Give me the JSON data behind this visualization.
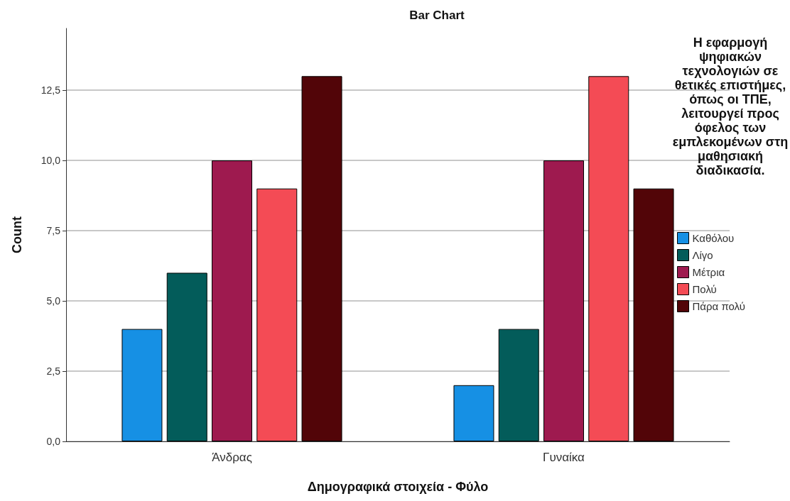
{
  "chart_data": {
    "type": "bar",
    "title": "Bar Chart",
    "xlabel": "Δημογραφικά στοιχεία - Φύλο",
    "ylabel": "Count",
    "legend_title": "Η εφαρμογή ψηφιακών τεχνολογιών σε θετικές επιστήμες, όπως οι ΤΠΕ, λειτουργεί προς όφελος των εμπλεκομένων στη μαθησιακή διαδικασία.",
    "categories": [
      "Άνδρας",
      "Γυναίκα"
    ],
    "series": [
      {
        "name": "Καθόλου",
        "color": "#1690e4",
        "values": [
          4,
          2
        ]
      },
      {
        "name": "Λίγο",
        "color": "#035c5a",
        "values": [
          6,
          4
        ]
      },
      {
        "name": "Μέτρια",
        "color": "#9e1a4f",
        "values": [
          10,
          10
        ]
      },
      {
        "name": "Πολύ",
        "color": "#f44b55",
        "values": [
          9,
          13
        ]
      },
      {
        "name": "Πάρα πολύ",
        "color": "#520508",
        "values": [
          13,
          9
        ]
      }
    ],
    "ylim": [
      0,
      14.7
    ],
    "yticks": [
      {
        "value": 0,
        "label": "0,0"
      },
      {
        "value": 2.5,
        "label": "2,5"
      },
      {
        "value": 5,
        "label": "5,0"
      },
      {
        "value": 7.5,
        "label": "7,5"
      },
      {
        "value": 10,
        "label": "10,0"
      },
      {
        "value": 12.5,
        "label": "12,5"
      }
    ],
    "grid": "y",
    "legend": "right"
  }
}
